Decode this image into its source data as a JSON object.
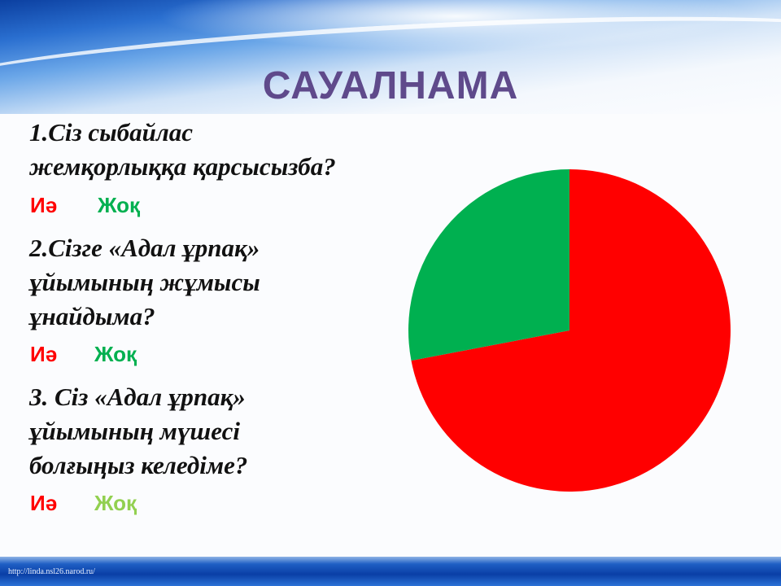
{
  "slide": {
    "title": "САУАЛНАМА",
    "footer": "http://linda.nsl26.narod.ru/"
  },
  "questions": [
    {
      "lines": [
        "1.Сіз сыбайлас",
        "жемқорлыққа қарсысызба?"
      ],
      "yes": "Иә",
      "no": "Жоқ",
      "no_color": "#00b050"
    },
    {
      "lines": [
        "2.Сізге «Адал ұрпақ»",
        "ұйымының жұмысы",
        "ұнайдыма?"
      ],
      "yes": "Иә",
      "no": "Жоқ",
      "no_color": "#00b050"
    },
    {
      "lines": [
        "3. Сіз «Адал ұрпақ»",
        "ұйымының мүшесі",
        "болғыңыз келедіме?"
      ],
      "yes": "Иә",
      "no": "Жоқ",
      "no_color": "#92d050"
    }
  ],
  "colors": {
    "yes": "#ff0000",
    "title": "#5f4a8b"
  },
  "chart_data": {
    "type": "pie",
    "start_angle": "12 o'clock, clockwise",
    "legend": "none",
    "slices": [
      {
        "label": "Иә",
        "value": 72,
        "color": "#ff0000"
      },
      {
        "label": "Жоқ",
        "value": 28,
        "color": "#00b050"
      }
    ]
  }
}
